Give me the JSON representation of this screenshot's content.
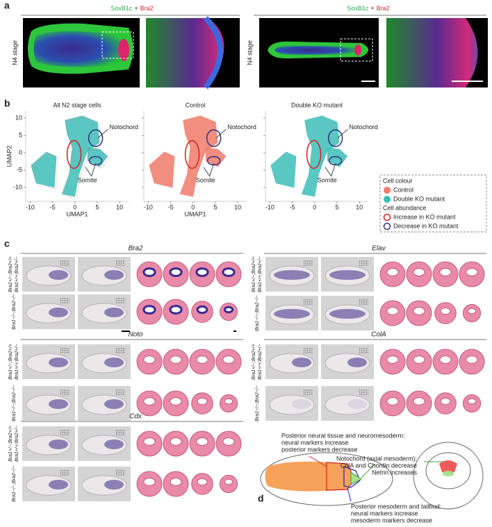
{
  "a": {
    "label": "a",
    "headers": [
      {
        "green": "SoxB1c",
        "plus": "+",
        "red": "Bra2"
      },
      {
        "green": "SoxB1c",
        "plus": "+",
        "red": "Bra2"
      }
    ],
    "stages": [
      "N4 stage",
      "N4 stage"
    ]
  },
  "b": {
    "label": "b",
    "titles": [
      "All N2 stage cells",
      "Control",
      "Double KO mutant"
    ],
    "xlabel": "UMAP1",
    "ylabel": "UMAP2",
    "xlim": [
      -11,
      12
    ],
    "ylim": [
      -14,
      12
    ],
    "xticks": [
      -10,
      -5,
      0,
      5,
      10
    ],
    "yticks": [
      10,
      5,
      0,
      -5,
      -10
    ],
    "notochord": "Notochord",
    "somite": "Somite",
    "legend": {
      "colour_title": "Cell colour",
      "control": "Control",
      "mutant": "Double KO mutant",
      "abundance_title": "Cell abundance",
      "increase": "Increase in KO mutant",
      "decrease": "Decrease in KO mutant"
    }
  },
  "c": {
    "label": "c",
    "genotype_top": [
      "Bra1+/−;Bra2+/+",
      "Bra1+/+;Bra2+/−"
    ],
    "genotype_bottom": "Bra1−/−;Bra2−/−",
    "genes": [
      "Bra2",
      "Elav",
      "Noto",
      "ColA",
      "Cdx"
    ]
  },
  "d": {
    "label": "d",
    "neural": [
      "Posterior neural tissue and neuromesoderm:",
      "neural markers increase",
      "posterior markers decrease"
    ],
    "notochord": [
      "Notochord (axial mesoderm):",
      "ColA and Chordin decrease",
      "Netrin increases"
    ],
    "mesoderm": [
      "Posterior mesoderm and tailbud:",
      "neural markers increase",
      "mesoderm markers decrease"
    ]
  }
}
